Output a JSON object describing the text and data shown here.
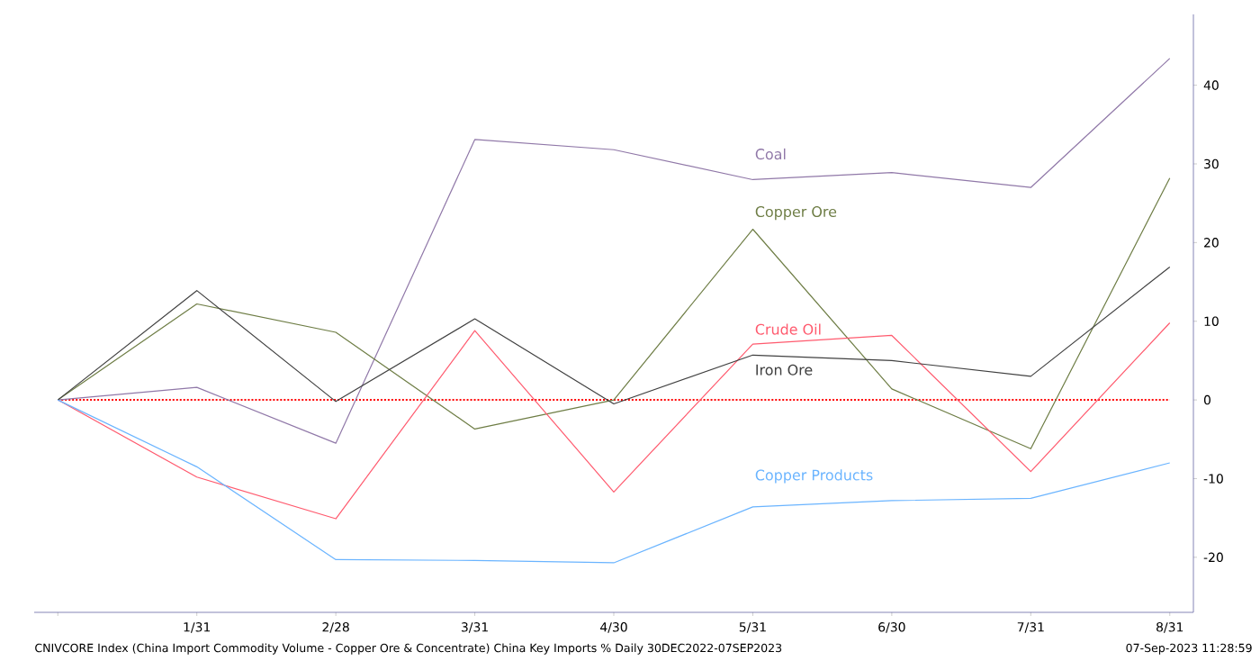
{
  "chart_data": {
    "type": "line",
    "categories": [
      null,
      "1/31",
      "2/28",
      "3/31",
      "4/30",
      "5/31",
      "6/30",
      "7/31",
      "8/31"
    ],
    "series": [
      {
        "name": "Coal",
        "color": "#9078a8",
        "values": [
          0,
          1.6,
          -5.5,
          33.1,
          31.8,
          28,
          28.9,
          27,
          43.4
        ]
      },
      {
        "name": "Copper Ore",
        "color": "#6e7d45",
        "values": [
          0,
          12.2,
          8.6,
          -3.7,
          0,
          21.7,
          1.4,
          -6.2,
          28.2
        ]
      },
      {
        "name": "Crude Oil",
        "color": "#ff5a6e",
        "values": [
          0,
          -9.8,
          -15.1,
          8.8,
          -11.7,
          7.1,
          8.2,
          -9.1,
          9.8
        ]
      },
      {
        "name": "Iron Ore",
        "color": "#404040",
        "values": [
          0,
          13.9,
          -0.2,
          10.3,
          -0.5,
          5.7,
          5.0,
          3.0,
          16.9
        ]
      },
      {
        "name": "Copper Products",
        "color": "#6ab4ff",
        "values": [
          0,
          -8.5,
          -20.3,
          -20.4,
          -20.7,
          -13.6,
          -12.8,
          -12.5,
          -8.0
        ]
      }
    ],
    "ylim": [
      -27,
      49
    ],
    "yticks": [
      -20,
      -10,
      0,
      10,
      20,
      30,
      40
    ],
    "ref_lines": [
      {
        "axis": "y",
        "value": 0,
        "color": "#ff0000",
        "line_style": "dotted"
      }
    ],
    "annotations": [
      "CNIVCORE Index (China Import Commodity Volume - Copper Ore & Concentrate) China Key Imports %  Daily 30DEC2022-07SEP2023",
      "07-Sep-2023 11:28:59"
    ],
    "grid": false,
    "legend": false,
    "marker": "none",
    "line_style": "solid"
  }
}
